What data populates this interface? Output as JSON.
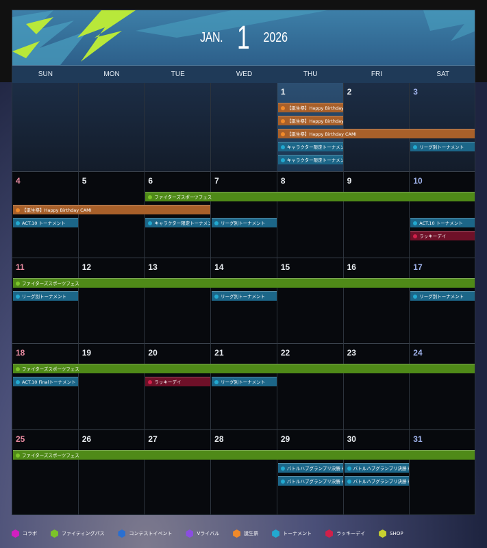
{
  "header": {
    "month": "JAN.",
    "month_number": "1",
    "year": "2026"
  },
  "weekdays": [
    "SUN",
    "MON",
    "TUE",
    "WED",
    "THU",
    "FRI",
    "SAT"
  ],
  "days_in_month": 31,
  "first_weekday_index": 4,
  "categories": {
    "collab": {
      "label": "コラボ",
      "color": "#d21fc0",
      "bar": "#8a1a80"
    },
    "fighting_pass": {
      "label": "ファイティングパス",
      "color": "#7cc42a",
      "bar": "#4f8a18"
    },
    "contest": {
      "label": "コンテストイベント",
      "color": "#2a6fd0",
      "bar": "#1d4a8a"
    },
    "revival": {
      "label": "Vライバル",
      "color": "#8a4ee0",
      "bar": "#5a2e98"
    },
    "birthday": {
      "label": "誕生祭",
      "color": "#f08a2a",
      "bar": "#a8602a"
    },
    "tournament": {
      "label": "トーナメント",
      "color": "#22a9d0",
      "bar": "#1c6688"
    },
    "lucky": {
      "label": "ラッキーデイ",
      "color": "#d0204a",
      "bar": "#6e1028"
    },
    "shop": {
      "label": "SHOP",
      "color": "#c8d030",
      "bar": "#7a8018"
    }
  },
  "legend_order": [
    "collab",
    "fighting_pass",
    "contest",
    "revival",
    "birthday",
    "tournament",
    "lucky",
    "shop"
  ],
  "weeks": [
    {
      "rows": [
        [
          {
            "start": 1,
            "end": 1,
            "cat": "birthday",
            "label": "【誕生祭】Happy Birthday JURI"
          }
        ],
        [
          {
            "start": 1,
            "end": 1,
            "cat": "birthday",
            "label": "【誕生祭】Happy Birthday MAI"
          }
        ],
        [
          {
            "start": 1,
            "end": 3,
            "cat": "birthday",
            "label": "【誕生祭】Happy Birthday CAMI"
          }
        ],
        [
          {
            "start": 1,
            "end": 1,
            "cat": "tournament",
            "label": "キャラクター限定トーナメント｜"
          },
          {
            "start": 3,
            "end": 3,
            "cat": "tournament",
            "label": "リーグ別トーナメント"
          }
        ],
        [
          {
            "start": 1,
            "end": 1,
            "cat": "tournament",
            "label": "キャラクター限定トーナメント｜"
          }
        ]
      ]
    },
    {
      "rows": [
        [
          {
            "start": 6,
            "end": 10,
            "cat": "fighting_pass",
            "label": "ファイターズスポーツフェス"
          }
        ],
        [
          {
            "start": 4,
            "end": 6,
            "cat": "birthday",
            "label": "【誕生祭】Happy Birthday CAMI"
          }
        ],
        [
          {
            "start": 4,
            "end": 4,
            "cat": "tournament",
            "label": "ACT.10 トーナメント"
          },
          {
            "start": 6,
            "end": 6,
            "cat": "tournament",
            "label": "キャラクター限定トーナメント｜"
          },
          {
            "start": 7,
            "end": 7,
            "cat": "tournament",
            "label": "リーグ別トーナメント"
          },
          {
            "start": 10,
            "end": 10,
            "cat": "tournament",
            "label": "ACT.10 トーナメント"
          }
        ],
        [
          {
            "start": 10,
            "end": 10,
            "cat": "lucky",
            "label": "ラッキーデイ"
          }
        ]
      ]
    },
    {
      "rows": [
        [
          {
            "start": 11,
            "end": 17,
            "cat": "fighting_pass",
            "label": "ファイターズスポーツフェス"
          }
        ],
        [
          {
            "start": 11,
            "end": 11,
            "cat": "tournament",
            "label": "リーグ別トーナメント"
          },
          {
            "start": 14,
            "end": 14,
            "cat": "tournament",
            "label": "リーグ別トーナメント"
          },
          {
            "start": 17,
            "end": 17,
            "cat": "tournament",
            "label": "リーグ別トーナメント"
          }
        ]
      ]
    },
    {
      "rows": [
        [
          {
            "start": 18,
            "end": 24,
            "cat": "fighting_pass",
            "label": "ファイターズスポーツフェス"
          }
        ],
        [
          {
            "start": 18,
            "end": 18,
            "cat": "tournament",
            "label": "ACT.10 Finalトーナメント"
          },
          {
            "start": 20,
            "end": 20,
            "cat": "lucky",
            "label": "ラッキーデイ"
          },
          {
            "start": 21,
            "end": 21,
            "cat": "tournament",
            "label": "リーグ別トーナメント"
          }
        ]
      ]
    },
    {
      "rows": [
        [
          {
            "start": 25,
            "end": 31,
            "cat": "fighting_pass",
            "label": "ファイターズスポーツフェス"
          }
        ],
        [
          {
            "start": 29,
            "end": 29,
            "cat": "tournament",
            "label": "バトルハブグランプリ決勝トーナ"
          },
          {
            "start": 30,
            "end": 30,
            "cat": "tournament",
            "label": "バトルハブグランプリ決勝トーナ"
          }
        ],
        [
          {
            "start": 29,
            "end": 29,
            "cat": "tournament",
            "label": "バトルハブグランプリ決勝トーナ"
          },
          {
            "start": 30,
            "end": 30,
            "cat": "tournament",
            "label": "バトルハブグランプリ決勝トーナ"
          }
        ]
      ]
    }
  ]
}
